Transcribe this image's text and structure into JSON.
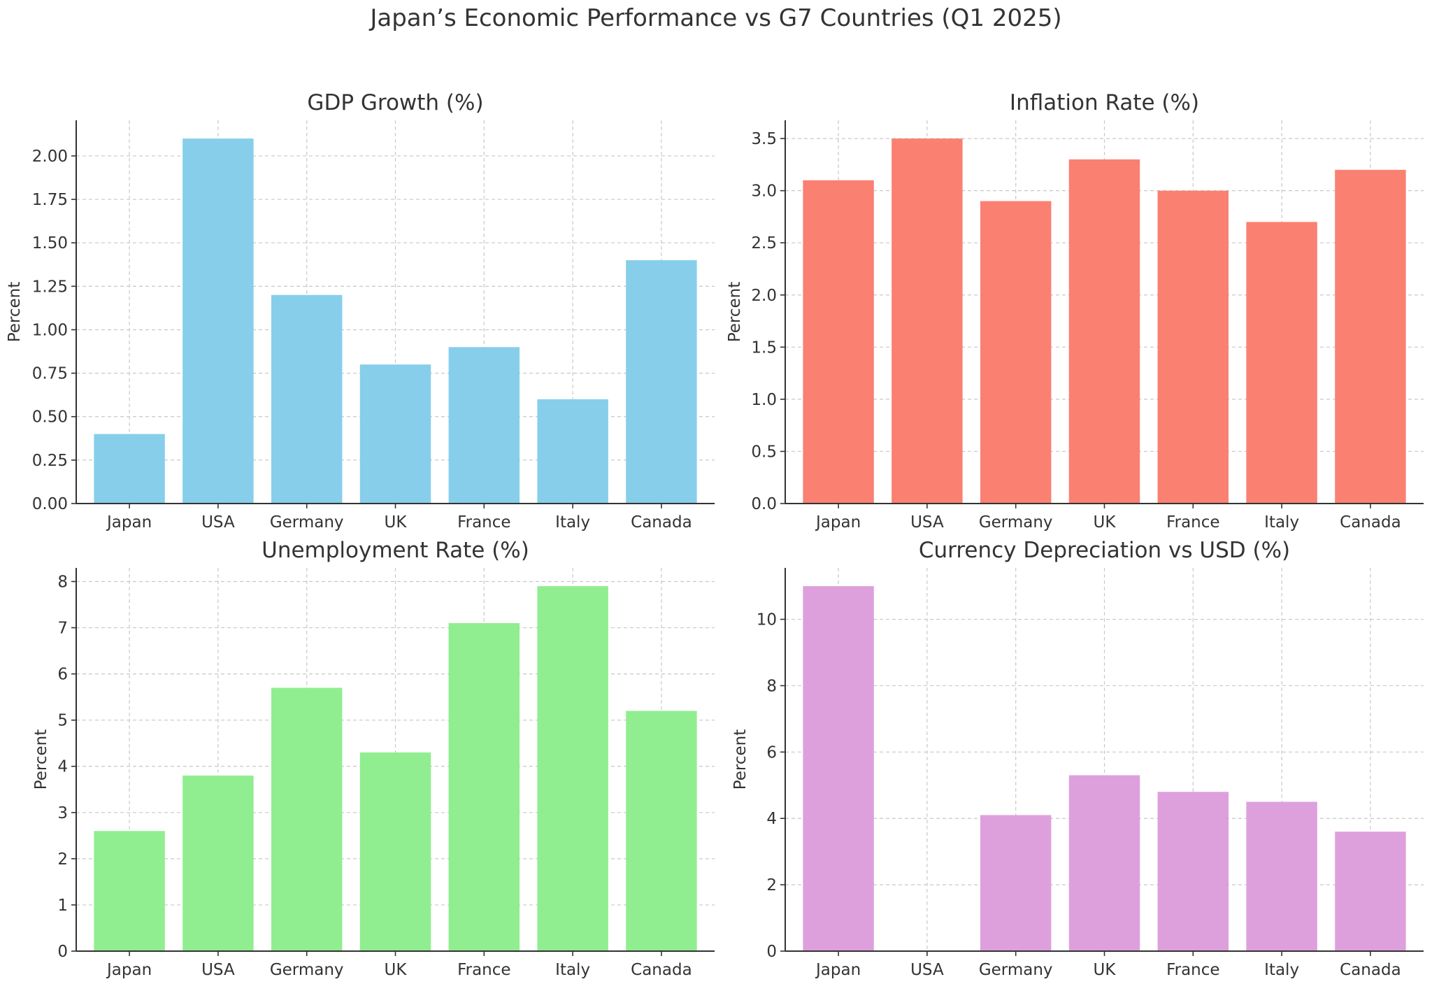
{
  "suptitle": "Japan’s Economic Performance vs G7 Countries (Q1 2025)",
  "chart_data": [
    {
      "type": "bar",
      "title": "GDP Growth (%)",
      "ylabel": "Percent",
      "xlabel": "",
      "categories": [
        "Japan",
        "USA",
        "Germany",
        "UK",
        "France",
        "Italy",
        "Canada"
      ],
      "values": [
        0.4,
        2.1,
        1.2,
        0.8,
        0.9,
        0.6,
        1.4
      ],
      "ylim": [
        0,
        2.205
      ],
      "yticks": [
        0,
        0.25,
        0.5,
        0.75,
        1.0,
        1.25,
        1.5,
        1.75,
        2.0
      ],
      "ytick_labels": [
        "0.00",
        "0.25",
        "0.50",
        "0.75",
        "1.00",
        "1.25",
        "1.50",
        "1.75",
        "2.00"
      ],
      "color": "#87CEEB",
      "grid": true
    },
    {
      "type": "bar",
      "title": "Inflation Rate (%)",
      "ylabel": "Percent",
      "xlabel": "",
      "categories": [
        "Japan",
        "USA",
        "Germany",
        "UK",
        "France",
        "Italy",
        "Canada"
      ],
      "values": [
        3.1,
        3.5,
        2.9,
        3.3,
        3.0,
        2.7,
        3.2
      ],
      "ylim": [
        0,
        3.675
      ],
      "yticks": [
        0,
        0.5,
        1.0,
        1.5,
        2.0,
        2.5,
        3.0,
        3.5
      ],
      "ytick_labels": [
        "0.0",
        "0.5",
        "1.0",
        "1.5",
        "2.0",
        "2.5",
        "3.0",
        "3.5"
      ],
      "color": "#FA8072",
      "grid": true
    },
    {
      "type": "bar",
      "title": "Unemployment Rate (%)",
      "ylabel": "Percent",
      "xlabel": "",
      "categories": [
        "Japan",
        "USA",
        "Germany",
        "UK",
        "France",
        "Italy",
        "Canada"
      ],
      "values": [
        2.6,
        3.8,
        5.7,
        4.3,
        7.1,
        7.9,
        5.2
      ],
      "ylim": [
        0,
        8.295
      ],
      "yticks": [
        0,
        1,
        2,
        3,
        4,
        5,
        6,
        7,
        8
      ],
      "ytick_labels": [
        "0",
        "1",
        "2",
        "3",
        "4",
        "5",
        "6",
        "7",
        "8"
      ],
      "color": "#90EE90",
      "grid": true
    },
    {
      "type": "bar",
      "title": "Currency Depreciation vs USD (%)",
      "ylabel": "Percent",
      "xlabel": "",
      "categories": [
        "Japan",
        "USA",
        "Germany",
        "UK",
        "France",
        "Italy",
        "Canada"
      ],
      "values": [
        11.0,
        0.0,
        4.1,
        5.3,
        4.8,
        4.5,
        3.6
      ],
      "ylim": [
        0,
        11.55
      ],
      "yticks": [
        0,
        2,
        4,
        6,
        8,
        10
      ],
      "ytick_labels": [
        "0",
        "2",
        "4",
        "6",
        "8",
        "10"
      ],
      "color": "#DDA0DD",
      "grid": true
    }
  ]
}
